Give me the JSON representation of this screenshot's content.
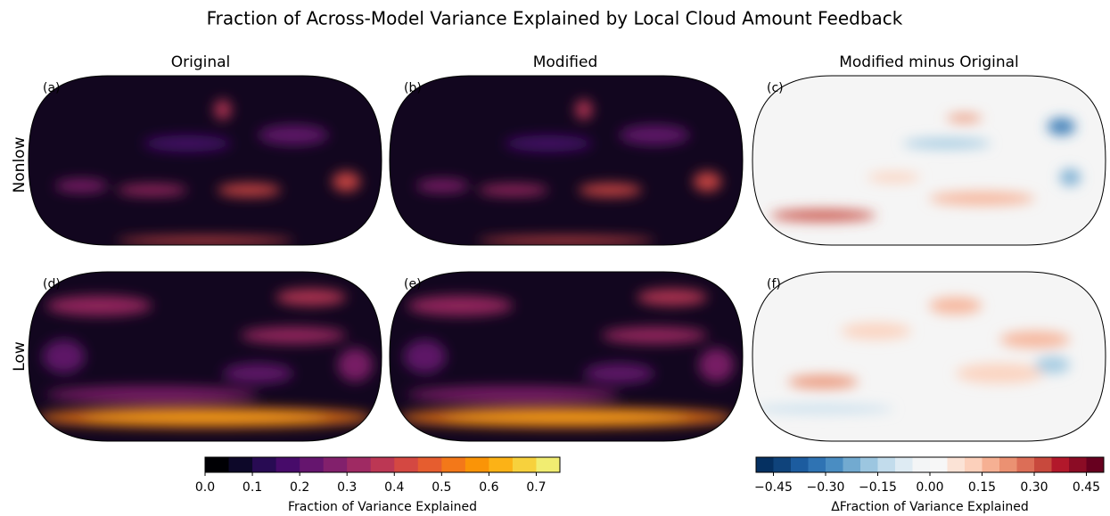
{
  "chart_data": {
    "type": "map",
    "title": "Fraction of Across-Model Variance Explained by Local Cloud Amount Feedback",
    "columns": [
      "Original",
      "Modified",
      "Modified minus Original"
    ],
    "rows": [
      "Nonlow",
      "Low"
    ],
    "panels": [
      "(a)",
      "(b)",
      "(c)",
      "(d)",
      "(e)",
      "(f)"
    ],
    "colorbars": [
      {
        "label": "Fraction of Variance Explained",
        "lim": [
          0,
          0.75
        ],
        "ticks": [
          {
            "value": 0,
            "label": "0.0"
          },
          0.1,
          0.2,
          0.3,
          0.4,
          0.5,
          0.6,
          0.7
        ],
        "colors": [
          "#000004",
          "#0d0829",
          "#280b53",
          "#470b6a",
          "#65156e",
          "#82206c",
          "#9f2a63",
          "#bc3754",
          "#d44842",
          "#e65d2f",
          "#f37819",
          "#fa9407",
          "#fcb216",
          "#f7d13d",
          "#f1ed71"
        ]
      },
      {
        "label": "ΔFraction of Variance Explained",
        "lim": [
          -0.5,
          0.5
        ],
        "ticks": [
          {
            "value": -0.45,
            "label": "−0.45"
          },
          {
            "value": -0.3,
            "label": "−0.30"
          },
          {
            "value": -0.15,
            "label": "−0.15"
          },
          {
            "value": 0,
            "label": "0.00"
          },
          0.15,
          {
            "value": 0.3,
            "label": "0.30"
          },
          0.45
        ],
        "colors": [
          "#053061",
          "#0f437b",
          "#1c5c9f",
          "#2f73b3",
          "#4a8dc2",
          "#72aad0",
          "#9cc6e0",
          "#c2dcec",
          "#deebf3",
          "#f3f5f6",
          "#f7f7f7",
          "#fbe3d6",
          "#fcd0bb",
          "#f6b093",
          "#eb9172",
          "#dc6e57",
          "#c8493d",
          "#b2182b",
          "#8b0c25",
          "#67001f"
        ]
      }
    ]
  }
}
